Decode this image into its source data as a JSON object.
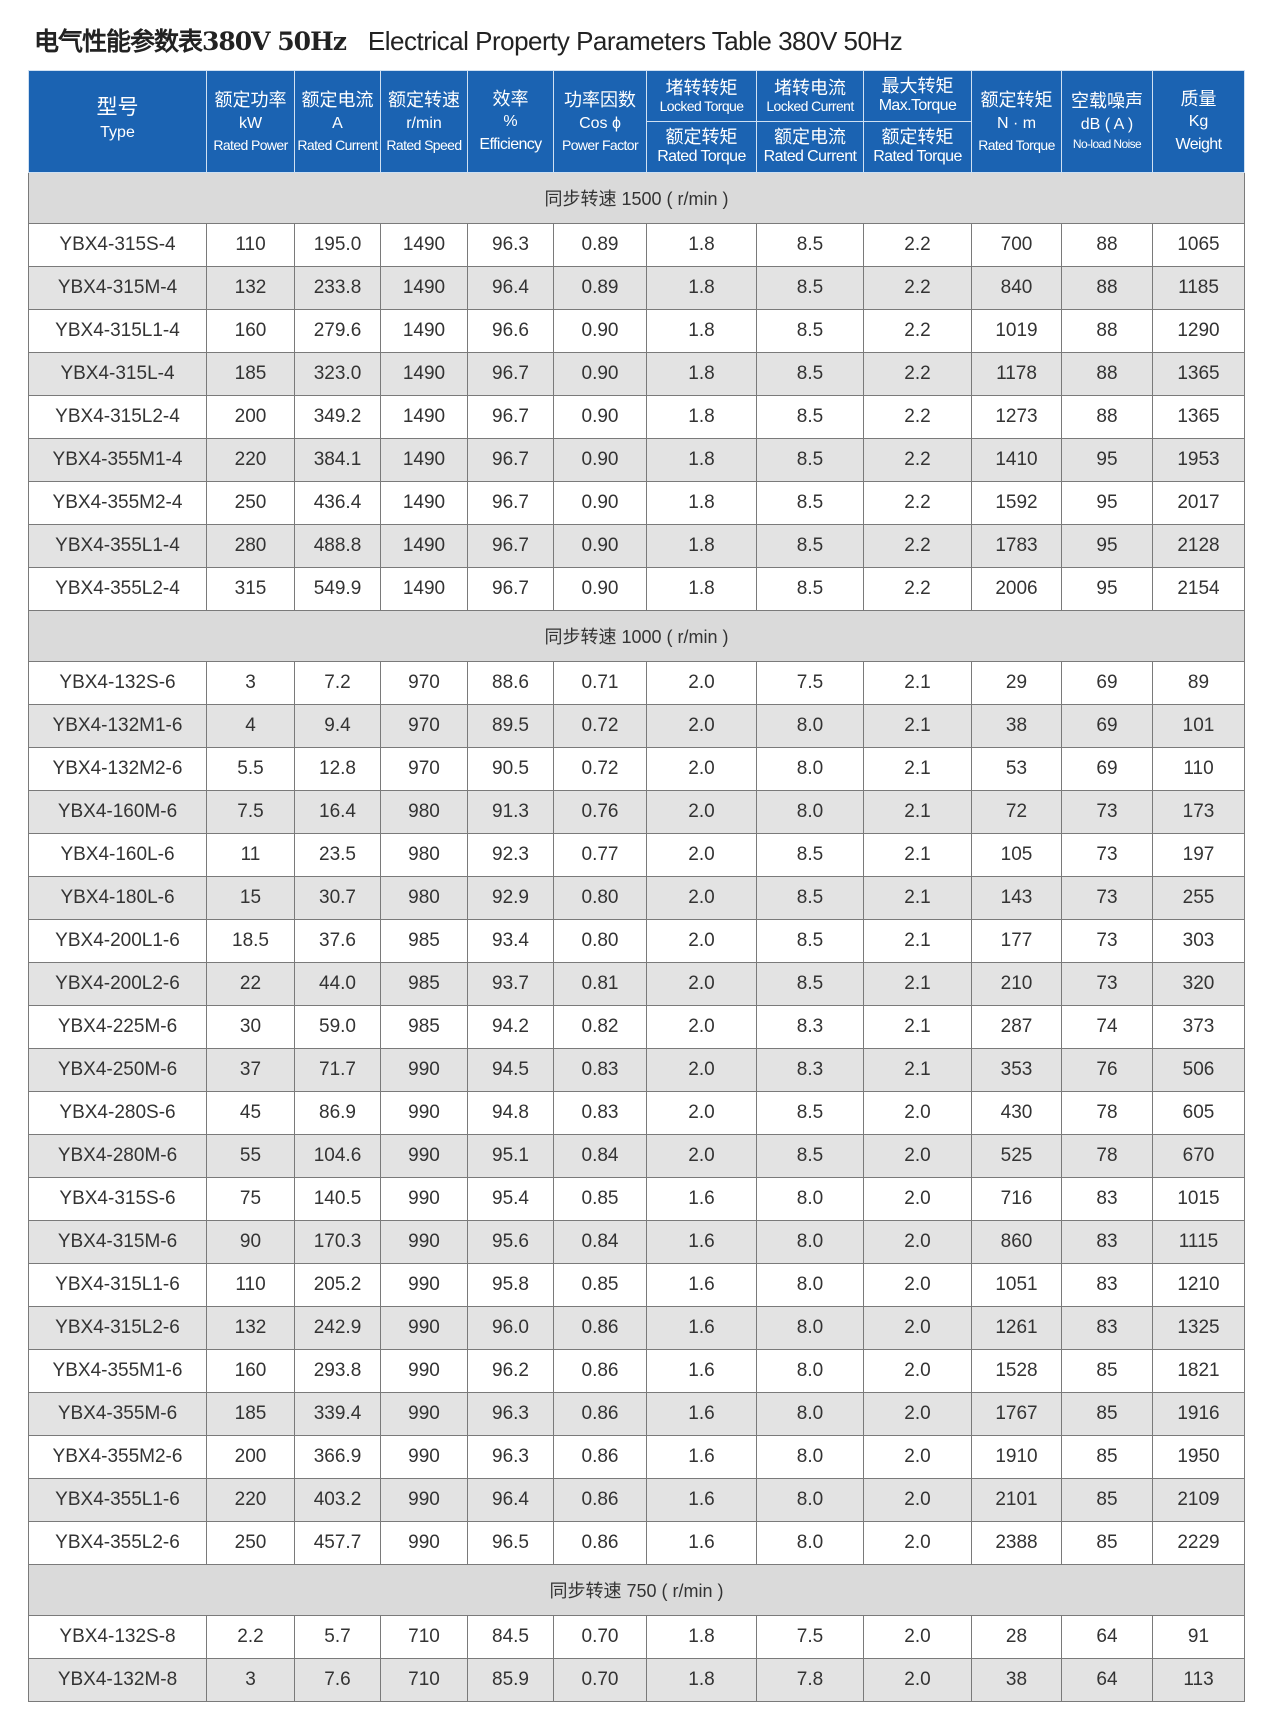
{
  "title": {
    "cn": "电气性能参数表380V 50Hz",
    "en": "Electrical Property Parameters Table 380V 50Hz"
  },
  "header": {
    "type": {
      "cn": "型号",
      "en": "Type"
    },
    "power": {
      "cn": "额定功率",
      "unit": "kW",
      "en": "Rated Power"
    },
    "current": {
      "cn": "额定电流",
      "unit": "A",
      "en": "Rated Current"
    },
    "speed": {
      "cn": "额定转速",
      "unit": "r/min",
      "en": "Rated Speed"
    },
    "eff": {
      "cn": "效率",
      "unit": "%",
      "en": "Efficiency"
    },
    "pf": {
      "cn": "功率因数",
      "unit": "Cos ϕ",
      "en": "Power Factor"
    },
    "lt": {
      "cn": "堵转转矩",
      "en": "Locked Torque",
      "cn2": "额定转矩",
      "en2": "Rated Torque"
    },
    "lc": {
      "cn": "堵转电流",
      "en": "Locked Current",
      "cn2": "额定电流",
      "en2": "Rated Current"
    },
    "mt": {
      "cn": "最大转矩",
      "en": "Max.Torque",
      "cn2": "额定转矩",
      "en2": "Rated Torque"
    },
    "rt": {
      "cn": "额定转矩",
      "unit": "N · m",
      "en": "Rated Torque"
    },
    "noise": {
      "cn": "空载噪声",
      "unit": "dB ( A )",
      "en": "No-load Noise"
    },
    "weight": {
      "cn": "质量",
      "unit": "Kg",
      "en": "Weight"
    }
  },
  "groups": [
    {
      "label": "同步转速  1500 ( r/min )",
      "rows": [
        [
          "YBX4-315S-4",
          "110",
          "195.0",
          "1490",
          "96.3",
          "0.89",
          "1.8",
          "8.5",
          "2.2",
          "700",
          "88",
          "1065"
        ],
        [
          "YBX4-315M-4",
          "132",
          "233.8",
          "1490",
          "96.4",
          "0.89",
          "1.8",
          "8.5",
          "2.2",
          "840",
          "88",
          "1185"
        ],
        [
          "YBX4-315L1-4",
          "160",
          "279.6",
          "1490",
          "96.6",
          "0.90",
          "1.8",
          "8.5",
          "2.2",
          "1019",
          "88",
          "1290"
        ],
        [
          "YBX4-315L-4",
          "185",
          "323.0",
          "1490",
          "96.7",
          "0.90",
          "1.8",
          "8.5",
          "2.2",
          "1178",
          "88",
          "1365"
        ],
        [
          "YBX4-315L2-4",
          "200",
          "349.2",
          "1490",
          "96.7",
          "0.90",
          "1.8",
          "8.5",
          "2.2",
          "1273",
          "88",
          "1365"
        ],
        [
          "YBX4-355M1-4",
          "220",
          "384.1",
          "1490",
          "96.7",
          "0.90",
          "1.8",
          "8.5",
          "2.2",
          "1410",
          "95",
          "1953"
        ],
        [
          "YBX4-355M2-4",
          "250",
          "436.4",
          "1490",
          "96.7",
          "0.90",
          "1.8",
          "8.5",
          "2.2",
          "1592",
          "95",
          "2017"
        ],
        [
          "YBX4-355L1-4",
          "280",
          "488.8",
          "1490",
          "96.7",
          "0.90",
          "1.8",
          "8.5",
          "2.2",
          "1783",
          "95",
          "2128"
        ],
        [
          "YBX4-355L2-4",
          "315",
          "549.9",
          "1490",
          "96.7",
          "0.90",
          "1.8",
          "8.5",
          "2.2",
          "2006",
          "95",
          "2154"
        ]
      ]
    },
    {
      "label": "同步转速  1000 ( r/min )",
      "rows": [
        [
          "YBX4-132S-6",
          "3",
          "7.2",
          "970",
          "88.6",
          "0.71",
          "2.0",
          "7.5",
          "2.1",
          "29",
          "69",
          "89"
        ],
        [
          "YBX4-132M1-6",
          "4",
          "9.4",
          "970",
          "89.5",
          "0.72",
          "2.0",
          "8.0",
          "2.1",
          "38",
          "69",
          "101"
        ],
        [
          "YBX4-132M2-6",
          "5.5",
          "12.8",
          "970",
          "90.5",
          "0.72",
          "2.0",
          "8.0",
          "2.1",
          "53",
          "69",
          "110"
        ],
        [
          "YBX4-160M-6",
          "7.5",
          "16.4",
          "980",
          "91.3",
          "0.76",
          "2.0",
          "8.0",
          "2.1",
          "72",
          "73",
          "173"
        ],
        [
          "YBX4-160L-6",
          "11",
          "23.5",
          "980",
          "92.3",
          "0.77",
          "2.0",
          "8.5",
          "2.1",
          "105",
          "73",
          "197"
        ],
        [
          "YBX4-180L-6",
          "15",
          "30.7",
          "980",
          "92.9",
          "0.80",
          "2.0",
          "8.5",
          "2.1",
          "143",
          "73",
          "255"
        ],
        [
          "YBX4-200L1-6",
          "18.5",
          "37.6",
          "985",
          "93.4",
          "0.80",
          "2.0",
          "8.5",
          "2.1",
          "177",
          "73",
          "303"
        ],
        [
          "YBX4-200L2-6",
          "22",
          "44.0",
          "985",
          "93.7",
          "0.81",
          "2.0",
          "8.5",
          "2.1",
          "210",
          "73",
          "320"
        ],
        [
          "YBX4-225M-6",
          "30",
          "59.0",
          "985",
          "94.2",
          "0.82",
          "2.0",
          "8.3",
          "2.1",
          "287",
          "74",
          "373"
        ],
        [
          "YBX4-250M-6",
          "37",
          "71.7",
          "990",
          "94.5",
          "0.83",
          "2.0",
          "8.3",
          "2.1",
          "353",
          "76",
          "506"
        ],
        [
          "YBX4-280S-6",
          "45",
          "86.9",
          "990",
          "94.8",
          "0.83",
          "2.0",
          "8.5",
          "2.0",
          "430",
          "78",
          "605"
        ],
        [
          "YBX4-280M-6",
          "55",
          "104.6",
          "990",
          "95.1",
          "0.84",
          "2.0",
          "8.5",
          "2.0",
          "525",
          "78",
          "670"
        ],
        [
          "YBX4-315S-6",
          "75",
          "140.5",
          "990",
          "95.4",
          "0.85",
          "1.6",
          "8.0",
          "2.0",
          "716",
          "83",
          "1015"
        ],
        [
          "YBX4-315M-6",
          "90",
          "170.3",
          "990",
          "95.6",
          "0.84",
          "1.6",
          "8.0",
          "2.0",
          "860",
          "83",
          "1115"
        ],
        [
          "YBX4-315L1-6",
          "110",
          "205.2",
          "990",
          "95.8",
          "0.85",
          "1.6",
          "8.0",
          "2.0",
          "1051",
          "83",
          "1210"
        ],
        [
          "YBX4-315L2-6",
          "132",
          "242.9",
          "990",
          "96.0",
          "0.86",
          "1.6",
          "8.0",
          "2.0",
          "1261",
          "83",
          "1325"
        ],
        [
          "YBX4-355M1-6",
          "160",
          "293.8",
          "990",
          "96.2",
          "0.86",
          "1.6",
          "8.0",
          "2.0",
          "1528",
          "85",
          "1821"
        ],
        [
          "YBX4-355M-6",
          "185",
          "339.4",
          "990",
          "96.3",
          "0.86",
          "1.6",
          "8.0",
          "2.0",
          "1767",
          "85",
          "1916"
        ],
        [
          "YBX4-355M2-6",
          "200",
          "366.9",
          "990",
          "96.3",
          "0.86",
          "1.6",
          "8.0",
          "2.0",
          "1910",
          "85",
          "1950"
        ],
        [
          "YBX4-355L1-6",
          "220",
          "403.2",
          "990",
          "96.4",
          "0.86",
          "1.6",
          "8.0",
          "2.0",
          "2101",
          "85",
          "2109"
        ],
        [
          "YBX4-355L2-6",
          "250",
          "457.7",
          "990",
          "96.5",
          "0.86",
          "1.6",
          "8.0",
          "2.0",
          "2388",
          "85",
          "2229"
        ]
      ]
    },
    {
      "label": "同步转速  750 ( r/min )",
      "rows": [
        [
          "YBX4-132S-8",
          "2.2",
          "5.7",
          "710",
          "84.5",
          "0.70",
          "1.8",
          "7.5",
          "2.0",
          "28",
          "64",
          "91"
        ],
        [
          "YBX4-132M-8",
          "3",
          "7.6",
          "710",
          "85.9",
          "0.70",
          "1.8",
          "7.8",
          "2.0",
          "38",
          "64",
          "113"
        ]
      ]
    }
  ],
  "colors": {
    "header_bg": "#1b63b2",
    "row_alt": "#e3e3e3",
    "section_bg": "#dadada"
  }
}
